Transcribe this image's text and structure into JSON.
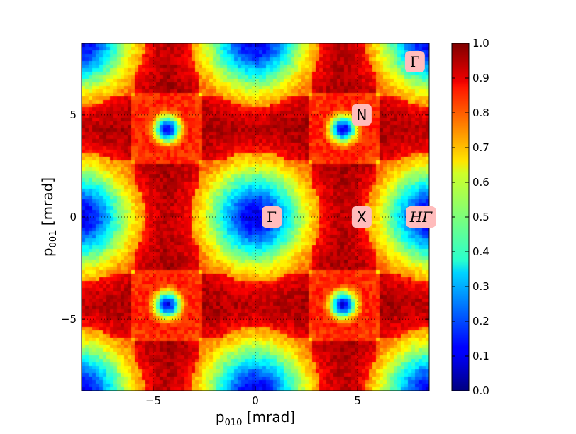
{
  "chart_data": {
    "type": "heatmap",
    "title": "",
    "xlabel": {
      "main": "p",
      "sub": "010",
      "unit": " [mrad]"
    },
    "ylabel": {
      "main": "p",
      "sub": "001",
      "unit": " [mrad]"
    },
    "xlim": [
      -8.5,
      8.5
    ],
    "ylim": [
      -8.5,
      8.5
    ],
    "xticks": [
      -5,
      0,
      5
    ],
    "yticks": [
      5,
      0,
      -5
    ],
    "xtick_labels": [
      "−5",
      "0",
      "5"
    ],
    "ytick_labels": [
      "5",
      "0",
      "−5"
    ],
    "grid": true,
    "grid_style": "dotted",
    "colormap": "jet",
    "colorbar": {
      "range": [
        0.0,
        1.0
      ],
      "ticks": [
        0.0,
        0.1,
        0.2,
        0.3,
        0.4,
        0.5,
        0.6,
        0.7,
        0.8,
        0.9,
        1.0
      ],
      "tick_labels": [
        "0.0",
        "0.1",
        "0.2",
        "0.3",
        "0.4",
        "0.5",
        "0.6",
        "0.7",
        "0.8",
        "0.9",
        "1.0"
      ],
      "placement": "right"
    },
    "annotations": [
      {
        "text": "Γ",
        "x": 0.8,
        "y": 0.0,
        "font": "serif",
        "box_color": "#ffbcbc"
      },
      {
        "text": "X",
        "x": 5.2,
        "y": 0.0,
        "font": "sans",
        "box_color": "#ffbcbc"
      },
      {
        "text": "HΓ",
        "x": 8.1,
        "y": 0.0,
        "font": "serif",
        "box_color": "#ffbcbc"
      },
      {
        "text": "N",
        "x": 5.2,
        "y": 5.0,
        "font": "sans",
        "box_color": "#ffbcbc"
      },
      {
        "text": "Γ",
        "x": 7.8,
        "y": 7.6,
        "font": "serif",
        "box_color": "#ffbcbc"
      }
    ],
    "pattern_period": 8.6,
    "minima_deep": [
      [
        0,
        0
      ]
    ],
    "minima_small": [
      [
        4.3,
        4.3
      ]
    ]
  }
}
